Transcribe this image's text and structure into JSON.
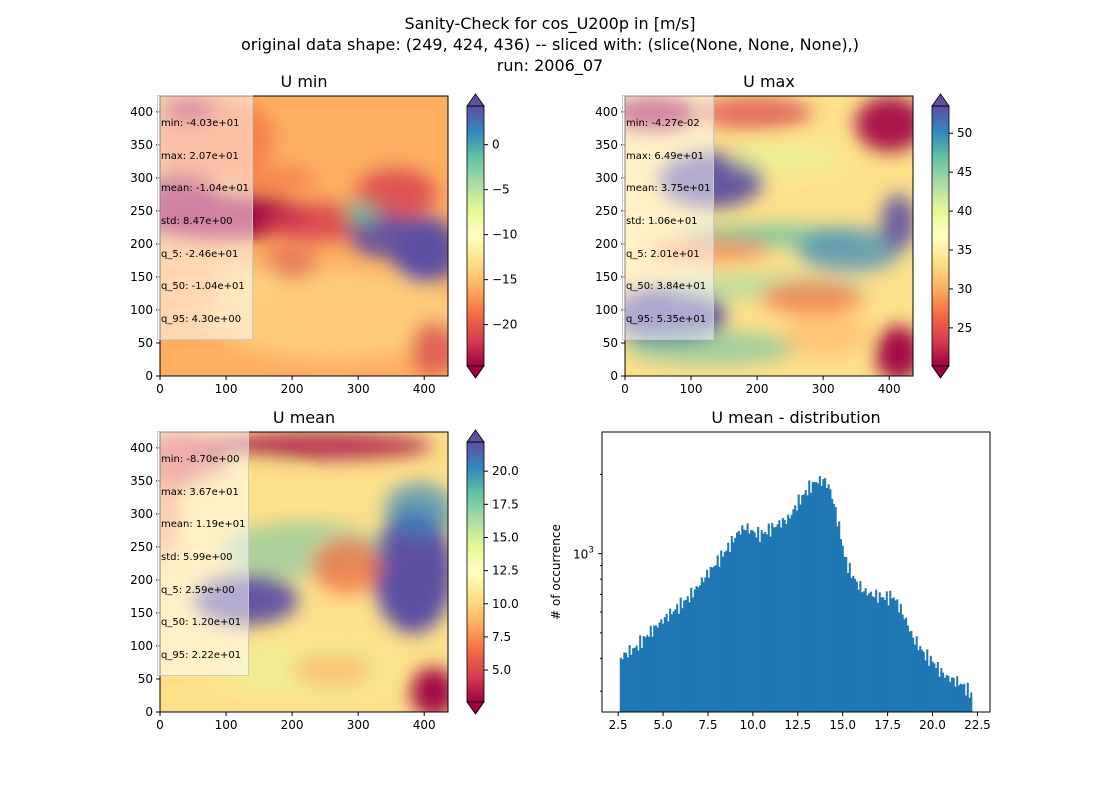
{
  "figure": {
    "title_lines": [
      "Sanity-Check for cos_U200p in [m/s]",
      "original data shape: (249, 424, 436) -- sliced with: (slice(None, None, None),)",
      "run: 2006_07"
    ]
  },
  "colormap": {
    "name": "Spectral",
    "stops": [
      "#9e0142",
      "#d53e4f",
      "#f46d43",
      "#fdae61",
      "#fee08b",
      "#ffffbf",
      "#e6f598",
      "#abdda4",
      "#66c2a5",
      "#3288bd",
      "#5e4fa2"
    ]
  },
  "chart_data": [
    {
      "type": "heatmap",
      "title": "U min",
      "x_ticks": [
        "0",
        "100",
        "200",
        "300",
        "400"
      ],
      "y_ticks": [
        "0",
        "50",
        "100",
        "150",
        "200",
        "250",
        "300",
        "350",
        "400"
      ],
      "xlim": [
        0,
        436
      ],
      "ylim": [
        0,
        424
      ],
      "colorbar": {
        "vmin": -24.6,
        "vmax": 4.3,
        "ticks": [
          "0",
          "−5",
          "−10",
          "−15",
          "−20"
        ],
        "tick_values": [
          0,
          -5,
          -10,
          -15,
          -20
        ],
        "extend": "both"
      },
      "stats": [
        "min: -4.03e+01",
        "max: 2.07e+01",
        "mean: -1.04e+01",
        "std: 8.47e+00",
        "q_5: -2.46e+01",
        "q_50: -1.04e+01",
        "q_95: 4.30e+00"
      ]
    },
    {
      "type": "heatmap",
      "title": "U max",
      "x_ticks": [
        "0",
        "100",
        "200",
        "300",
        "400"
      ],
      "y_ticks": [
        "0",
        "50",
        "100",
        "150",
        "200",
        "250",
        "300",
        "350",
        "400"
      ],
      "xlim": [
        0,
        436
      ],
      "ylim": [
        0,
        424
      ],
      "colorbar": {
        "vmin": 20.1,
        "vmax": 53.5,
        "ticks": [
          "50",
          "45",
          "40",
          "35",
          "30",
          "25"
        ],
        "tick_values": [
          50,
          45,
          40,
          35,
          30,
          25
        ],
        "extend": "both"
      },
      "stats": [
        "min: -4.27e-02",
        "max: 6.49e+01",
        "mean: 3.75e+01",
        "std: 1.06e+01",
        "q_5: 2.01e+01",
        "q_50: 3.84e+01",
        "q_95: 5.35e+01"
      ]
    },
    {
      "type": "heatmap",
      "title": "U mean",
      "x_ticks": [
        "0",
        "100",
        "200",
        "300",
        "400"
      ],
      "y_ticks": [
        "0",
        "50",
        "100",
        "150",
        "200",
        "250",
        "300",
        "350",
        "400"
      ],
      "xlim": [
        0,
        436
      ],
      "ylim": [
        0,
        424
      ],
      "colorbar": {
        "vmin": 2.59,
        "vmax": 22.2,
        "ticks": [
          "20.0",
          "17.5",
          "15.0",
          "12.5",
          "10.0",
          "7.5",
          "5.0"
        ],
        "tick_values": [
          20,
          17.5,
          15,
          12.5,
          10,
          7.5,
          5
        ],
        "extend": "both"
      },
      "stats": [
        "min: -8.70e+00",
        "max: 3.67e+01",
        "mean: 1.19e+01",
        "std: 5.99e+00",
        "q_5: 2.59e+00",
        "q_50: 1.20e+01",
        "q_95: 2.22e+01"
      ]
    },
    {
      "type": "bar",
      "title": "U mean - distribution",
      "ylabel": "# of occurrence",
      "xlabel": "",
      "y_scale": "log",
      "y_tick_label": "10",
      "y_tick_exp": "3",
      "x_ticks": [
        "2.5",
        "5.0",
        "7.5",
        "10.0",
        "12.5",
        "15.0",
        "17.5",
        "20.0",
        "22.5"
      ],
      "x_tick_values": [
        2.5,
        5.0,
        7.5,
        10.0,
        12.5,
        15.0,
        17.5,
        20.0,
        22.5
      ],
      "xlim": [
        1.6,
        23.2
      ],
      "ylim": [
        250,
        2900
      ],
      "bin_range": [
        2.59,
        22.2
      ],
      "color": "#1f77b4",
      "shape_x": [
        2.6,
        3.0,
        3.5,
        4.0,
        4.5,
        5.0,
        5.5,
        6.0,
        6.5,
        7.0,
        7.3,
        7.6,
        8.0,
        8.4,
        8.8,
        9.2,
        9.6,
        10.0,
        10.4,
        10.8,
        11.2,
        11.6,
        12.0,
        12.5,
        13.0,
        13.5,
        14.0,
        14.3,
        14.6,
        14.9,
        15.1,
        15.4,
        15.8,
        16.2,
        16.6,
        17.0,
        17.4,
        17.8,
        18.2,
        18.5,
        18.9,
        19.3,
        19.6,
        20.0,
        20.4,
        20.8,
        21.2,
        21.6,
        22.0,
        22.2
      ],
      "shape_y": [
        400,
        420,
        440,
        480,
        520,
        560,
        600,
        640,
        690,
        760,
        810,
        860,
        930,
        1010,
        1100,
        1210,
        1260,
        1210,
        1180,
        1220,
        1270,
        1320,
        1360,
        1560,
        1740,
        1880,
        1900,
        1750,
        1450,
        1160,
        970,
        860,
        770,
        720,
        700,
        690,
        680,
        690,
        620,
        560,
        480,
        440,
        410,
        390,
        360,
        340,
        330,
        320,
        300,
        290
      ]
    }
  ]
}
